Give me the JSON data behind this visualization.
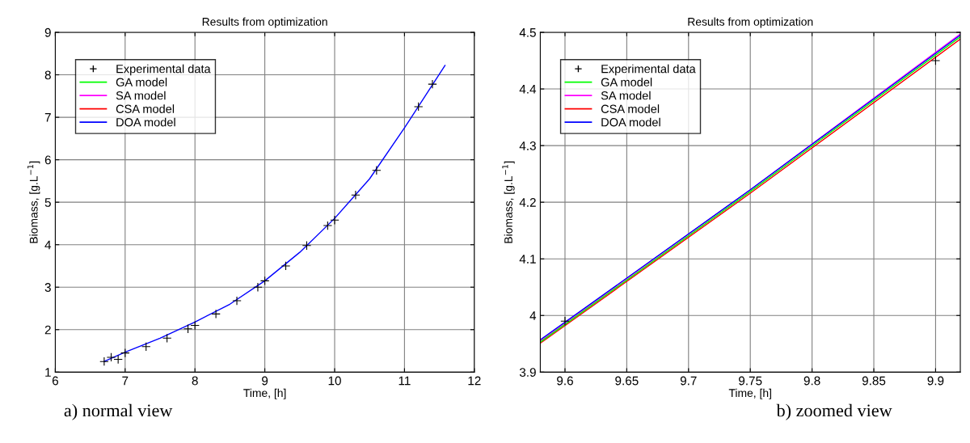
{
  "chart_data": [
    {
      "type": "line",
      "title": "Results from optimization",
      "xlabel": "Time, [h]",
      "ylabel": "Biomass, [g.L$^{−1}$]",
      "xlim": [
        6,
        12
      ],
      "ylim": [
        1,
        9
      ],
      "xticks": [
        6,
        7,
        8,
        9,
        10,
        11,
        12
      ],
      "yticks": [
        1,
        2,
        3,
        4,
        5,
        6,
        7,
        8,
        9
      ],
      "grid": true,
      "legend": "top left",
      "annotations": [
        "a) normal view"
      ],
      "series": [
        {
          "name": "Experimental data",
          "type": "scatter",
          "marker": "cross",
          "color": "#000000",
          "x": [
            6.7,
            6.8,
            6.9,
            7.0,
            7.3,
            7.6,
            7.9,
            8.0,
            8.3,
            8.6,
            8.9,
            9.0,
            9.3,
            9.6,
            9.9,
            10.0,
            10.3,
            10.6,
            11.2,
            11.4
          ],
          "values": [
            1.25,
            1.35,
            1.3,
            1.45,
            1.6,
            1.8,
            2.02,
            2.1,
            2.37,
            2.68,
            3.0,
            3.15,
            3.5,
            3.98,
            4.45,
            4.58,
            5.17,
            5.75,
            7.25,
            7.78
          ]
        },
        {
          "name": "GA model",
          "color": "#00ff00"
        },
        {
          "name": "SA model",
          "color": "#ff00ff"
        },
        {
          "name": "CSA model",
          "color": "#ff0000"
        },
        {
          "name": "DOA model",
          "color": "#0000ff",
          "x": [
            6.7,
            7.0,
            7.5,
            8.0,
            8.5,
            9.0,
            9.5,
            10.0,
            10.5,
            11.0,
            11.58
          ],
          "values": [
            1.25,
            1.47,
            1.8,
            2.18,
            2.6,
            3.15,
            3.82,
            4.62,
            5.55,
            6.75,
            8.22
          ]
        }
      ]
    },
    {
      "type": "line",
      "title": "Results from optimization",
      "xlabel": "Time, [h]",
      "ylabel": "Biomass, [g.L$^{−1}$]",
      "xlim": [
        9.58,
        9.92
      ],
      "ylim": [
        3.9,
        4.5
      ],
      "xticks": [
        9.6,
        9.65,
        9.7,
        9.75,
        9.8,
        9.85,
        9.9
      ],
      "yticks": [
        3.9,
        4,
        4.1,
        4.2,
        4.3,
        4.4,
        4.5
      ],
      "grid": true,
      "legend": "top left",
      "annotations": [
        "b) zoomed view"
      ],
      "series": [
        {
          "name": "Experimental data",
          "type": "scatter",
          "marker": "cross",
          "color": "#000000",
          "x": [
            9.6,
            9.9
          ],
          "values": [
            3.99,
            4.45
          ]
        },
        {
          "name": "GA model",
          "color": "#00ff00",
          "x": [
            9.58,
            9.75,
            9.92
          ],
          "values": [
            3.953,
            4.219,
            4.492
          ]
        },
        {
          "name": "SA model",
          "color": "#ff00ff",
          "x": [
            9.58,
            9.75,
            9.92
          ],
          "values": [
            3.955,
            4.222,
            4.497
          ]
        },
        {
          "name": "CSA model",
          "color": "#ff0000",
          "x": [
            9.58,
            9.75,
            9.92
          ],
          "values": [
            3.951,
            4.216,
            4.488
          ]
        },
        {
          "name": "DOA model",
          "color": "#0000ff",
          "x": [
            9.58,
            9.75,
            9.92
          ],
          "values": [
            3.957,
            4.222,
            4.495
          ]
        }
      ]
    }
  ]
}
